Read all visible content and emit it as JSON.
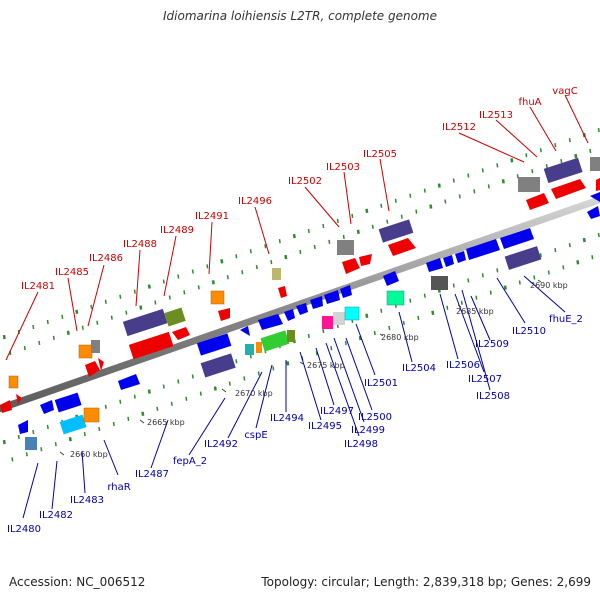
{
  "title": "Idiomarina loihiensis L2TR, complete genome",
  "footer": {
    "accession": "Accession: NC_006512",
    "summary": "Topology: circular; Length: 2,839,318 bp; Genes: 2,699"
  },
  "scale_labels": [
    "2660 kbp",
    "2665 kbp",
    "2670 kbp",
    "2675 kbp",
    "2680 kbp",
    "2685 kbp",
    "2690 kbp"
  ],
  "forward_genes": [
    "IL2481",
    "IL2485",
    "IL2486",
    "IL2488",
    "IL2489",
    "IL2491",
    "IL2496",
    "IL2502",
    "IL2503",
    "IL2505",
    "IL2512",
    "IL2513",
    "fhuA",
    "vagC"
  ],
  "reverse_genes": [
    "IL2480",
    "IL2482",
    "IL2483",
    "rhaR",
    "IL2487",
    "fepA_2",
    "IL2492",
    "cspE",
    "IL2494",
    "IL2495",
    "IL2497",
    "IL2498",
    "IL2499",
    "IL2500",
    "IL2501",
    "IL2504",
    "IL2506",
    "IL2507",
    "IL2508",
    "IL2509",
    "IL2510",
    "fhuE_2"
  ],
  "colors": {
    "forward_label": "#cc0000",
    "reverse_label": "#0000aa",
    "backbone": "#9a9a9a",
    "tick": "#2e8b2e"
  }
}
